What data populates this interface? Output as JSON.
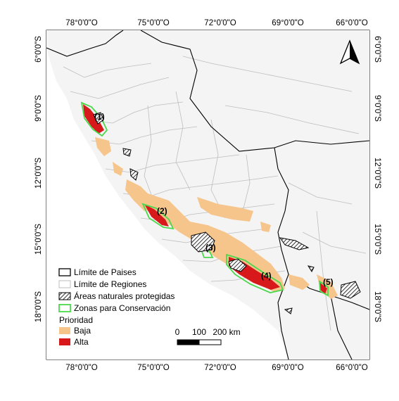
{
  "colors": {
    "land": "#f4f4f4",
    "region_border": "#bdbdbd",
    "country_border": "#000000",
    "priority_low": "#f6c58b",
    "priority_high": "#d7191c",
    "conservation_zone": "#4cd84c",
    "protected_fill": "#ffffff"
  },
  "axes": {
    "top_ticks": [
      "78°0'0\"O",
      "75°0'0\"O",
      "72°0'0\"O",
      "69°0'0\"O",
      "66°0'0\"O"
    ],
    "bottom_ticks": [
      "78°0'0\"O",
      "75°0'0\"O",
      "72°0'0\"O",
      "69°0'0\"O",
      "66°0'0\"O"
    ],
    "left_ticks": [
      "6°0'0\"S",
      "9°0'0\"S",
      "12°0'0\"S",
      "15°0'0\"S",
      "18°0'0\"S"
    ],
    "right_ticks": [
      "6°0'0\"S",
      "9°0'0\"S",
      "12°0'0\"S",
      "15°0'0\"S",
      "18°0'0\"S"
    ]
  },
  "zones": [
    "(1)",
    "(2)",
    "(3)",
    "(4)",
    "(5)"
  ],
  "legend": {
    "countries": "Límite de Paises",
    "regions": "Límite de Regiones",
    "protected": "Áreas naturales protegidas",
    "conservation": "Zonas para Conservación",
    "priority_title": "Prioridad",
    "low": "Baja",
    "high": "Alta"
  },
  "scalebar": {
    "labels": [
      "0",
      "100",
      "200 km"
    ]
  },
  "north_arrow": "north-arrow-icon"
}
